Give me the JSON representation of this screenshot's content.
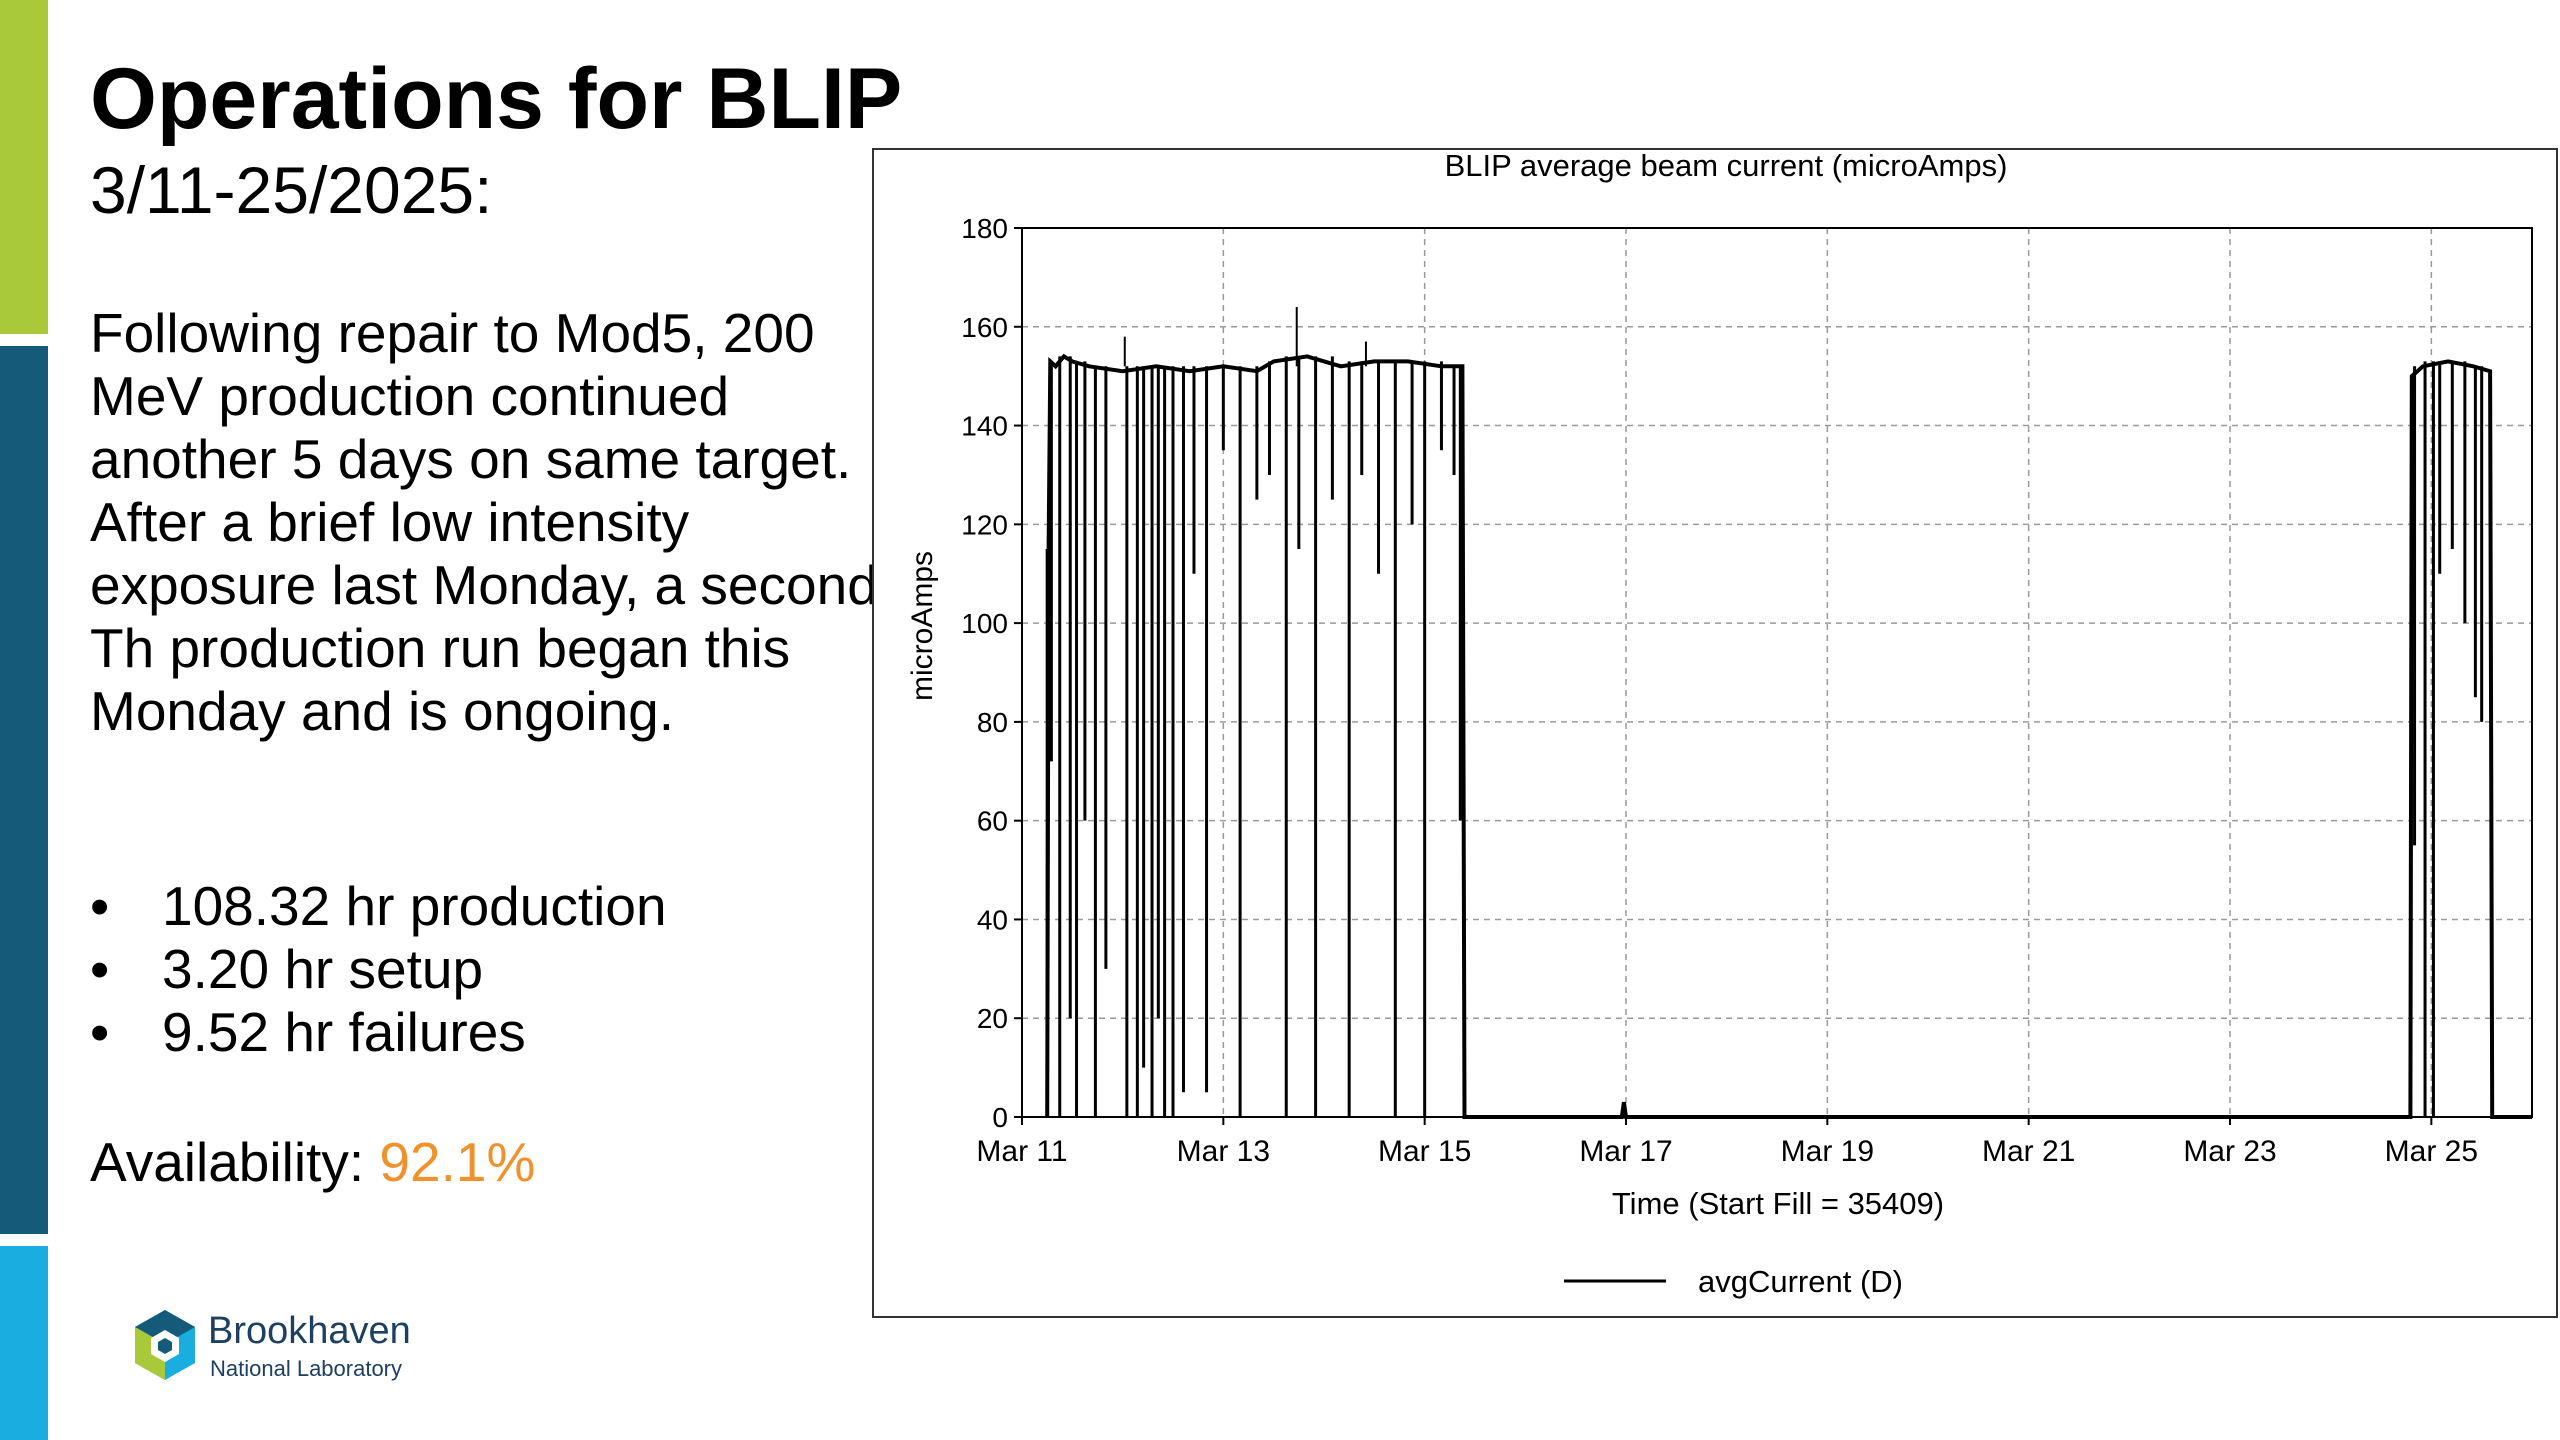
{
  "slide": {
    "title": "Operations for BLIP",
    "subtitle": "3/11-25/2025:",
    "paragraph": "Following repair to Mod5, 200 MeV production continued another 5 days on same target. After a brief low intensity exposure last Monday, a second Th production run began this Monday and is ongoing.",
    "bullets": [
      "108.32 hr production",
      "3.20 hr setup",
      "9.52 hr failures"
    ],
    "availability_label": "Availability: ",
    "availability_value": "92.1%",
    "availability_color": "#f0922c"
  },
  "logo": {
    "name": "Brookhaven",
    "subtitle": "National Laboratory",
    "icon": "brookhaven-hexagon-logo-icon"
  },
  "colors": {
    "bar_green": "#a9c93a",
    "bar_navy": "#155a78",
    "bar_cyan": "#1aaee0"
  },
  "chart_data": {
    "type": "line",
    "title": "BLIP average beam current (microAmps)",
    "xlabel": "Time (Start Fill = 35409)",
    "ylabel": "microAmps",
    "x_ticks": [
      "Mar 11",
      "Mar 13",
      "Mar 15",
      "Mar 17",
      "Mar 19",
      "Mar 21",
      "Mar 23",
      "Mar 25"
    ],
    "x_range": [
      "Mar 11 00:00",
      "Mar 26 00:00"
    ],
    "ylim": [
      0,
      180
    ],
    "y_ticks": [
      0,
      20,
      40,
      60,
      80,
      100,
      120,
      140,
      160,
      180
    ],
    "grid": true,
    "legend_position": "bottom",
    "series": [
      {
        "name": "avgCurrent (D)",
        "color": "#000000",
        "points": [
          [
            "Mar 11 06:00",
            0
          ],
          [
            "Mar 11 06:20",
            115
          ],
          [
            "Mar 11 06:45",
            153
          ],
          [
            "Mar 11 08:00",
            152
          ],
          [
            "Mar 11 10:00",
            154
          ],
          [
            "Mar 11 12:00",
            153
          ],
          [
            "Mar 11 16:00",
            152
          ],
          [
            "Mar 12 00:00",
            151
          ],
          [
            "Mar 12 08:00",
            152
          ],
          [
            "Mar 12 16:00",
            151
          ],
          [
            "Mar 13 00:00",
            152
          ],
          [
            "Mar 13 08:00",
            151
          ],
          [
            "Mar 13 12:00",
            153
          ],
          [
            "Mar 13 20:00",
            154
          ],
          [
            "Mar 14 04:00",
            152
          ],
          [
            "Mar 14 12:00",
            153
          ],
          [
            "Mar 14 20:00",
            153
          ],
          [
            "Mar 15 04:00",
            152
          ],
          [
            "Mar 15 09:00",
            152
          ],
          [
            "Mar 15 09:30",
            0
          ],
          [
            "Mar 16 23:00",
            0
          ],
          [
            "Mar 16 23:30",
            3
          ],
          [
            "Mar 17 00:00",
            0
          ],
          [
            "Mar 24 19:00",
            0
          ],
          [
            "Mar 24 19:20",
            150
          ],
          [
            "Mar 24 22:00",
            152
          ],
          [
            "Mar 25 04:00",
            153
          ],
          [
            "Mar 25 10:00",
            152
          ],
          [
            "Mar 25 14:00",
            151
          ],
          [
            "Mar 25 14:30",
            0
          ],
          [
            "Mar 26 00:00",
            0
          ]
        ],
        "dips": [
          [
            "Mar 11 06:00",
            15
          ],
          [
            "Mar 11 07:00",
            72
          ],
          [
            "Mar 11 09:00",
            0
          ],
          [
            "Mar 11 11:30",
            20
          ],
          [
            "Mar 11 13:00",
            0
          ],
          [
            "Mar 11 15:00",
            60
          ],
          [
            "Mar 11 17:30",
            0
          ],
          [
            "Mar 11 20:00",
            30
          ],
          [
            "Mar 12 01:00",
            0
          ],
          [
            "Mar 12 03:30",
            0
          ],
          [
            "Mar 12 05:00",
            10
          ],
          [
            "Mar 12 07:00",
            0
          ],
          [
            "Mar 12 08:30",
            20
          ],
          [
            "Mar 12 10:00",
            0
          ],
          [
            "Mar 12 12:00",
            0
          ],
          [
            "Mar 12 14:30",
            5
          ],
          [
            "Mar 12 17:00",
            110
          ],
          [
            "Mar 12 20:00",
            5
          ],
          [
            "Mar 13 00:00",
            135
          ],
          [
            "Mar 13 04:00",
            0
          ],
          [
            "Mar 13 08:00",
            125
          ],
          [
            "Mar 13 11:00",
            130
          ],
          [
            "Mar 13 15:00",
            0
          ],
          [
            "Mar 13 18:00",
            115
          ],
          [
            "Mar 13 22:00",
            0
          ],
          [
            "Mar 14 02:00",
            125
          ],
          [
            "Mar 14 06:00",
            0
          ],
          [
            "Mar 14 09:00",
            130
          ],
          [
            "Mar 14 13:00",
            110
          ],
          [
            "Mar 14 17:00",
            0
          ],
          [
            "Mar 14 21:00",
            120
          ],
          [
            "Mar 15 00:00",
            0
          ],
          [
            "Mar 15 04:00",
            135
          ],
          [
            "Mar 15 07:00",
            130
          ],
          [
            "Mar 15 08:30",
            60
          ],
          [
            "Mar 24 20:00",
            55
          ],
          [
            "Mar 24 22:30",
            0
          ],
          [
            "Mar 25 00:30",
            0
          ],
          [
            "Mar 25 02:00",
            110
          ],
          [
            "Mar 25 05:00",
            115
          ],
          [
            "Mar 25 08:00",
            100
          ],
          [
            "Mar 25 10:30",
            85
          ],
          [
            "Mar 25 12:00",
            80
          ]
        ],
        "spikes": [
          [
            "Mar 12 00:30",
            158
          ],
          [
            "Mar 13 17:30",
            164
          ],
          [
            "Mar 14 10:00",
            157
          ]
        ]
      }
    ]
  }
}
